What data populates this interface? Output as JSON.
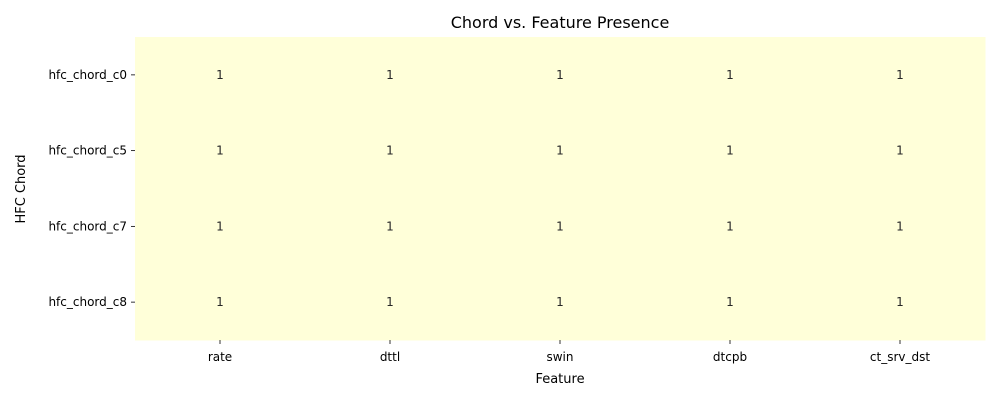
{
  "chart_data": {
    "type": "heatmap",
    "title": "Chord vs. Feature Presence",
    "xlabel": "Feature",
    "ylabel": "HFC Chord",
    "x_categories": [
      "rate",
      "dttl",
      "swin",
      "dtcpb",
      "ct_srv_dst"
    ],
    "y_categories": [
      "hfc_chord_c0",
      "hfc_chord_c5",
      "hfc_chord_c7",
      "hfc_chord_c8"
    ],
    "values": [
      [
        1,
        1,
        1,
        1,
        1
      ],
      [
        1,
        1,
        1,
        1,
        1
      ],
      [
        1,
        1,
        1,
        1,
        1
      ],
      [
        1,
        1,
        1,
        1,
        1
      ]
    ],
    "annotations": true,
    "colorbar": false,
    "cell_color": "#ffffd9",
    "grid": false,
    "legend": "none"
  }
}
